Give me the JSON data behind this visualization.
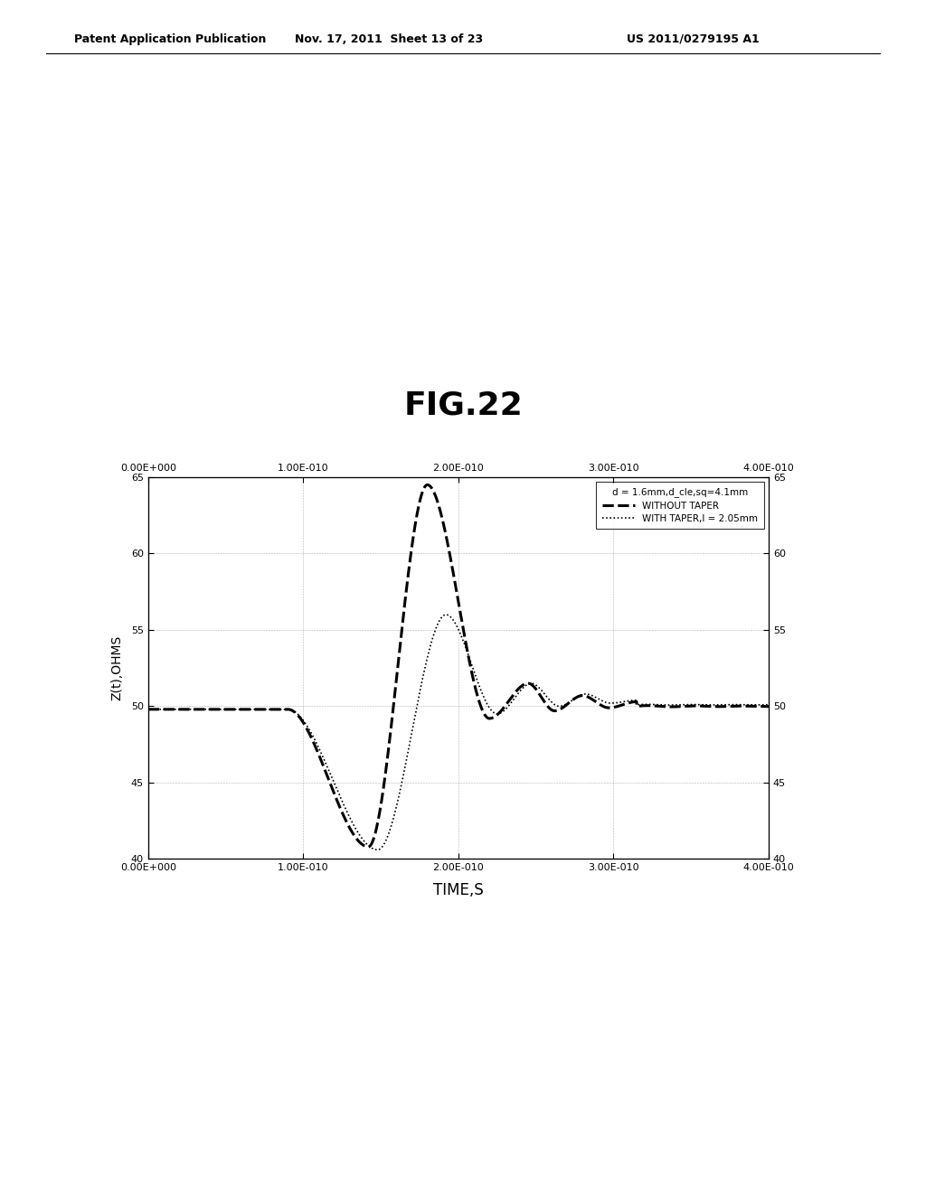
{
  "title": "FIG.22",
  "xlabel": "TIME,S",
  "ylabel": "Z(t),OHMS",
  "header_left": "Patent Application Publication",
  "header_mid": "Nov. 17, 2011  Sheet 13 of 23",
  "header_right": "US 2011/0279195 A1",
  "xlim": [
    0.0,
    4e-10
  ],
  "ylim": [
    40,
    65
  ],
  "yticks": [
    40,
    45,
    50,
    55,
    60,
    65
  ],
  "xticks": [
    0.0,
    1e-10,
    2e-10,
    3e-10,
    4e-10
  ],
  "xtick_labels": [
    "0.00E+000",
    "1.00E-010",
    "2.00E-010",
    "3.00E-010",
    "4.00E-010"
  ],
  "yticks_right": [
    40,
    45,
    50,
    55,
    60,
    65
  ],
  "legend_title": "d = 1.6mm,d_cle,sq=4.1mm",
  "legend_line1": "WITHOUT TAPER",
  "legend_line2": "WITH TAPER,l = 2.05mm",
  "line1_color": "#000000",
  "line2_color": "#000000",
  "background_color": "#ffffff",
  "title_fontsize": 26,
  "label_fontsize": 10,
  "tick_fontsize": 8,
  "header_fontsize": 9
}
